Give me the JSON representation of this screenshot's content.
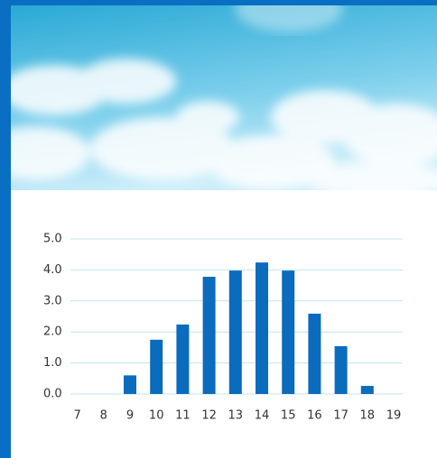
{
  "chart_data": {
    "type": "bar",
    "categories": [
      "7",
      "8",
      "9",
      "10",
      "11",
      "12",
      "13",
      "14",
      "15",
      "16",
      "17",
      "18",
      "19"
    ],
    "values": [
      0,
      0,
      0.6,
      1.75,
      2.24,
      3.78,
      3.98,
      4.24,
      3.98,
      2.59,
      1.54,
      0.26,
      0
    ],
    "color": "#0b6bbd",
    "ylim": [
      0,
      5
    ],
    "yticks": [
      {
        "value": 0,
        "label": "0.0"
      },
      {
        "value": 1,
        "label": "1.0"
      },
      {
        "value": 2,
        "label": "2.0"
      },
      {
        "value": 3,
        "label": "3.0"
      },
      {
        "value": 4,
        "label": "4.0"
      },
      {
        "value": 5,
        "label": "5.0"
      }
    ],
    "grid": true
  }
}
